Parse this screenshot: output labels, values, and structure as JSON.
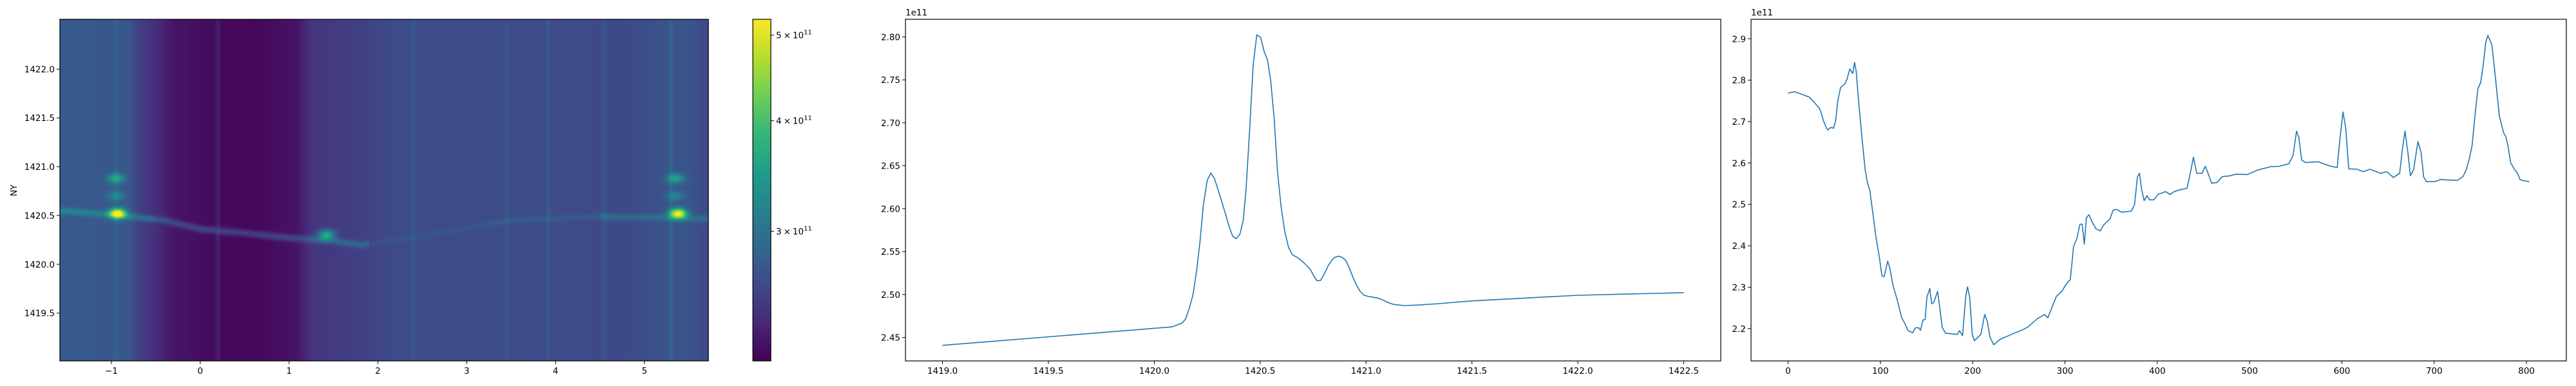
{
  "chart_data": [
    {
      "type": "heatmap",
      "ylabel": "NY",
      "xlim": [
        -1.58,
        5.72
      ],
      "ylim": [
        1419.01,
        1422.51
      ],
      "xticks": [
        "−1",
        "0",
        "1",
        "2",
        "3",
        "4",
        "5"
      ],
      "xtick_values": [
        -1,
        0,
        1,
        2,
        3,
        4,
        5
      ],
      "yticks": [
        "1419.5",
        "1420.0",
        "1420.5",
        "1421.0",
        "1421.5",
        "1422.0"
      ],
      "ytick_values": [
        1419.5,
        1420.0,
        1420.5,
        1421.0,
        1421.5,
        1422.0
      ],
      "colormap": "viridis",
      "color_scale": "log",
      "color_range": [
        214000000000.0,
        521000000000.0
      ],
      "colorbar_ticks": [
        {
          "value": 500000000000.0,
          "mantissa": "5",
          "base": "10",
          "exponent": "11"
        },
        {
          "value": 400000000000.0,
          "mantissa": "4",
          "base": "10",
          "exponent": "11"
        },
        {
          "value": 300000000000.0,
          "mantissa": "3",
          "base": "10",
          "exponent": "11"
        }
      ],
      "hotspots": [
        {
          "x": -0.93,
          "y": 1420.52,
          "value": 520000000000.0
        },
        {
          "x": -0.95,
          "y": 1420.88,
          "value": 350000000000.0
        },
        {
          "x": -0.95,
          "y": 1420.7,
          "value": 310000000000.0
        },
        {
          "x": 1.42,
          "y": 1420.3,
          "value": 380000000000.0
        },
        {
          "x": 5.38,
          "y": 1420.52,
          "value": 520000000000.0
        },
        {
          "x": 5.35,
          "y": 1420.88,
          "value": 350000000000.0
        },
        {
          "x": 5.35,
          "y": 1420.7,
          "value": 310000000000.0
        }
      ],
      "ridge": [
        [
          -1.58,
          1420.55
        ],
        [
          -0.9,
          1420.5
        ],
        [
          -0.4,
          1420.45
        ],
        [
          0,
          1420.36
        ],
        [
          0.5,
          1420.32
        ],
        [
          1.0,
          1420.27
        ],
        [
          1.5,
          1420.24
        ],
        [
          1.8,
          1420.2
        ],
        [
          2.3,
          1420.26
        ],
        [
          3.5,
          1420.45
        ],
        [
          4.5,
          1420.49
        ],
        [
          5.72,
          1420.47
        ]
      ]
    },
    {
      "type": "line",
      "offset_text": "1e11",
      "xlim": [
        1418.825,
        1422.675
      ],
      "ylim": [
        2.4227,
        2.8205
      ],
      "xticks": [
        "1419.0",
        "1419.5",
        "1420.0",
        "1420.5",
        "1421.0",
        "1421.5",
        "1422.0",
        "1422.5"
      ],
      "xtick_values": [
        1419.0,
        1419.5,
        1420.0,
        1420.5,
        1421.0,
        1421.5,
        1422.0,
        1422.5
      ],
      "yticks": [
        "2.45",
        "2.50",
        "2.55",
        "2.60",
        "2.65",
        "2.70",
        "2.75",
        "2.80"
      ],
      "ytick_values": [
        2.45,
        2.5,
        2.55,
        2.6,
        2.65,
        2.7,
        2.75,
        2.8
      ],
      "color": "#1f77b4",
      "x": [
        1419.0,
        1420.084,
        1420.13,
        1420.148,
        1420.166,
        1420.183,
        1420.2,
        1420.216,
        1420.232,
        1420.25,
        1420.267,
        1420.284,
        1420.3,
        1420.335,
        1420.352,
        1420.37,
        1420.386,
        1420.404,
        1420.42,
        1420.433,
        1420.45,
        1420.467,
        1420.484,
        1420.502,
        1420.519,
        1420.535,
        1420.55,
        1420.566,
        1420.582,
        1420.599,
        1420.616,
        1420.634,
        1420.652,
        1420.68,
        1420.71,
        1420.736,
        1420.754,
        1420.769,
        1420.786,
        1420.801,
        1420.822,
        1420.837,
        1420.852,
        1420.87,
        1420.887,
        1420.904,
        1420.921,
        1420.938,
        1420.953,
        1420.971,
        1420.989,
        1421.007,
        1421.054,
        1421.075,
        1421.1,
        1421.13,
        1421.181,
        1421.242,
        1421.343,
        1421.495,
        1421.647,
        1421.85,
        1422.0,
        1422.5
      ],
      "y": [
        2.4408,
        2.4623,
        2.4666,
        2.4715,
        2.4847,
        2.5002,
        2.5277,
        2.562,
        2.605,
        2.633,
        2.6415,
        2.635,
        2.623,
        2.595,
        2.58,
        2.568,
        2.565,
        2.57,
        2.5865,
        2.622,
        2.691,
        2.767,
        2.8024,
        2.7995,
        2.783,
        2.7728,
        2.7484,
        2.7054,
        2.6423,
        2.6022,
        2.5735,
        2.5548,
        2.5462,
        2.5425,
        2.5362,
        2.5295,
        2.5212,
        2.516,
        2.5166,
        2.5233,
        2.5338,
        2.5396,
        2.5433,
        2.5447,
        2.5433,
        2.5399,
        2.531,
        2.5203,
        2.5118,
        2.504,
        2.4994,
        2.498,
        2.496,
        2.4942,
        2.4911,
        2.4885,
        2.4871,
        2.4877,
        2.4894,
        2.4925,
        2.4945,
        2.4972,
        2.4991,
        2.5022
      ]
    },
    {
      "type": "line",
      "offset_text": "1e11",
      "xlim": [
        -40.15,
        843.15
      ],
      "ylim": [
        2.122,
        2.947
      ],
      "xticks": [
        "0",
        "100",
        "200",
        "300",
        "400",
        "500",
        "600",
        "700",
        "800"
      ],
      "xtick_values": [
        0,
        100,
        200,
        300,
        400,
        500,
        600,
        700,
        800
      ],
      "yticks": [
        "2.2",
        "2.3",
        "2.4",
        "2.5",
        "2.6",
        "2.7",
        "2.8",
        "2.9"
      ],
      "ytick_values": [
        2.2,
        2.3,
        2.4,
        2.5,
        2.6,
        2.7,
        2.8,
        2.9
      ],
      "color": "#1f77b4",
      "x": [
        0,
        7,
        16,
        23,
        28,
        34,
        36,
        38.3,
        41.3,
        43,
        46.4,
        49.2,
        51.5,
        53.8,
        56.8,
        61.5,
        63.8,
        66.8,
        70,
        72,
        73.8,
        76.6,
        80,
        83.5,
        85.8,
        88.6,
        91.6,
        95.1,
        98.6,
        101.6,
        104,
        107.9,
        110.2,
        113.7,
        118.3,
        123,
        126.5,
        130,
        135,
        138,
        141.5,
        143.4,
        146.2,
        148.5,
        150.3,
        153.6,
        155.5,
        157.8,
        162,
        164.3,
        167,
        170.5,
        178.7,
        183.3,
        185.6,
        189,
        192.6,
        194.4,
        196.8,
        199.5,
        201.9,
        208.8,
        213,
        215.8,
        218.6,
        222.7,
        229.7,
        239,
        246,
        253,
        260,
        270,
        278,
        281.4,
        286,
        290.7,
        296.5,
        301.2,
        305.8,
        309.3,
        312.8,
        316.2,
        318.6,
        320.9,
        323.2,
        326,
        329.7,
        333.6,
        338.3,
        341.8,
        348.7,
        352.2,
        355.7,
        361.5,
        372,
        375.4,
        378.4,
        380.7,
        383,
        385.8,
        388.6,
        391.6,
        396.3,
        400.9,
        409,
        413.7,
        418.3,
        424.1,
        432.3,
        435.7,
        439.2,
        442.7,
        448.5,
        452,
        455.5,
        458.9,
        464.7,
        470.5,
        478.7,
        485.6,
        497.2,
        508.8,
        522.7,
        532,
        542.5,
        547.1,
        550.8,
        553.4,
        556.4,
        560.6,
        574.5,
        581.4,
        588.4,
        594.9,
        598,
        601.2,
        604.2,
        607.4,
        616.2,
        623.2,
        630.2,
        641.8,
        648.7,
        655.7,
        662.6,
        665.4,
        668.4,
        671.5,
        674.2,
        677.7,
        682.4,
        685.8,
        688.6,
        691.6,
        700.9,
        706.7,
        725.3,
        731.1,
        734.6,
        738,
        741.1,
        743.9,
        747.3,
        750.3,
        753.1,
        755.9,
        758.2,
        762.4,
        765.9,
        770.5,
        775.2,
        777.5,
        779.8,
        782.8,
        786.8,
        790.3,
        793,
        797.2,
        803
      ],
      "y": [
        2.769,
        2.772,
        2.765,
        2.759,
        2.747,
        2.732,
        2.72,
        2.702,
        2.686,
        2.68,
        2.686,
        2.684,
        2.702,
        2.75,
        2.782,
        2.791,
        2.802,
        2.827,
        2.816,
        2.843,
        2.821,
        2.744,
        2.661,
        2.584,
        2.554,
        2.533,
        2.483,
        2.423,
        2.376,
        2.328,
        2.325,
        2.363,
        2.346,
        2.304,
        2.269,
        2.227,
        2.212,
        2.195,
        2.19,
        2.202,
        2.202,
        2.196,
        2.221,
        2.222,
        2.275,
        2.297,
        2.26,
        2.263,
        2.29,
        2.251,
        2.203,
        2.189,
        2.187,
        2.186,
        2.195,
        2.183,
        2.281,
        2.301,
        2.275,
        2.186,
        2.171,
        2.186,
        2.234,
        2.218,
        2.18,
        2.161,
        2.174,
        2.183,
        2.19,
        2.196,
        2.204,
        2.224,
        2.234,
        2.226,
        2.252,
        2.278,
        2.29,
        2.307,
        2.319,
        2.399,
        2.417,
        2.452,
        2.452,
        2.404,
        2.468,
        2.475,
        2.456,
        2.441,
        2.436,
        2.45,
        2.465,
        2.486,
        2.488,
        2.481,
        2.484,
        2.5,
        2.566,
        2.575,
        2.536,
        2.509,
        2.521,
        2.511,
        2.511,
        2.524,
        2.531,
        2.524,
        2.531,
        2.535,
        2.539,
        2.575,
        2.614,
        2.575,
        2.575,
        2.592,
        2.572,
        2.551,
        2.553,
        2.567,
        2.569,
        2.573,
        2.572,
        2.583,
        2.591,
        2.592,
        2.598,
        2.618,
        2.677,
        2.661,
        2.607,
        2.601,
        2.603,
        2.597,
        2.592,
        2.589,
        2.661,
        2.723,
        2.684,
        2.586,
        2.585,
        2.579,
        2.585,
        2.575,
        2.579,
        2.565,
        2.575,
        2.631,
        2.677,
        2.625,
        2.569,
        2.584,
        2.652,
        2.625,
        2.566,
        2.555,
        2.555,
        2.56,
        2.558,
        2.567,
        2.583,
        2.61,
        2.643,
        2.708,
        2.779,
        2.794,
        2.836,
        2.892,
        2.908,
        2.886,
        2.815,
        2.714,
        2.673,
        2.664,
        2.643,
        2.601,
        2.585,
        2.575,
        2.56,
        2.557,
        2.555
      ]
    }
  ]
}
